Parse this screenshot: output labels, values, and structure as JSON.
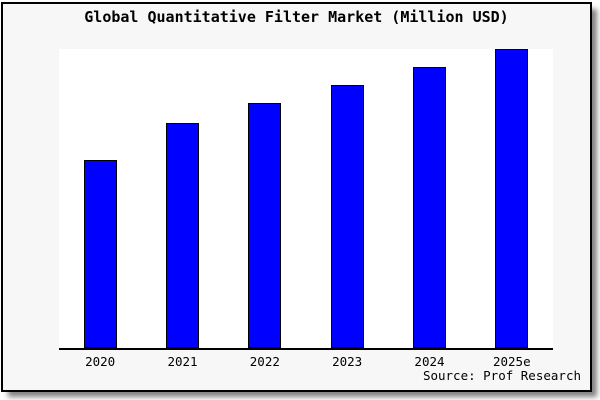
{
  "chart_data": {
    "type": "bar",
    "title": "Global Quantitative Filter Market (Million USD)",
    "categories": [
      "2020",
      "2021",
      "2022",
      "2023",
      "2024",
      "2025e"
    ],
    "values": [
      62.9,
      75.3,
      82.0,
      87.8,
      94.0,
      100
    ],
    "note": "No y-axis ticks, labels or gridlines are shown in the image; values are relative bar-height estimates normalized so the tallest bar (2025e) = 100.",
    "xlabel": "",
    "ylabel": "",
    "ylim": [
      0,
      100
    ],
    "grid": false,
    "legend": false,
    "spines": "bottom-only",
    "bar_color": "#0000ff",
    "bar_edge_color": "#000000",
    "plot_background": "#ffffff",
    "figure_background": "#f7f7f7",
    "frame_border_color": "#000000"
  },
  "source": {
    "label": "Source: Prof Research"
  }
}
